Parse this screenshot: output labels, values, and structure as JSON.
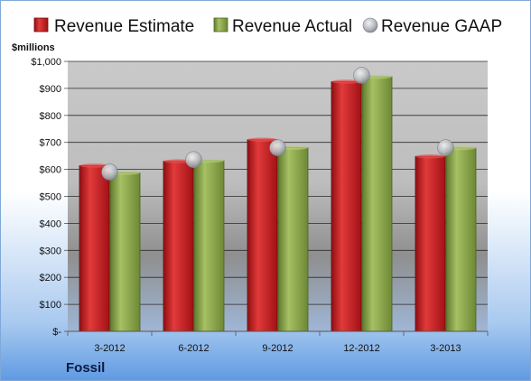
{
  "chart_data": {
    "type": "bar",
    "unit_label": "$millions",
    "company": "Fossil",
    "categories": [
      "3-2012",
      "6-2012",
      "9-2012",
      "12-2012",
      "3-2013"
    ],
    "series": [
      {
        "name": "Revenue Estimate",
        "kind": "bar",
        "color": "#c8191e",
        "values": [
          614,
          630,
          710,
          925,
          648
        ]
      },
      {
        "name": "Revenue Actual",
        "kind": "bar",
        "color": "#8aa64a",
        "values": [
          587,
          632,
          680,
          943,
          679
        ]
      },
      {
        "name": "Revenue GAAP",
        "kind": "marker",
        "color": "#b9bec6",
        "values": [
          590,
          636,
          680,
          948,
          680
        ]
      }
    ],
    "y_ticks": [
      "$-",
      "$100",
      "$200",
      "$300",
      "$400",
      "$500",
      "$600",
      "$700",
      "$800",
      "$900",
      "$1,000"
    ],
    "ylim": [
      0,
      1000
    ],
    "grid": true,
    "legend_position": "top"
  }
}
